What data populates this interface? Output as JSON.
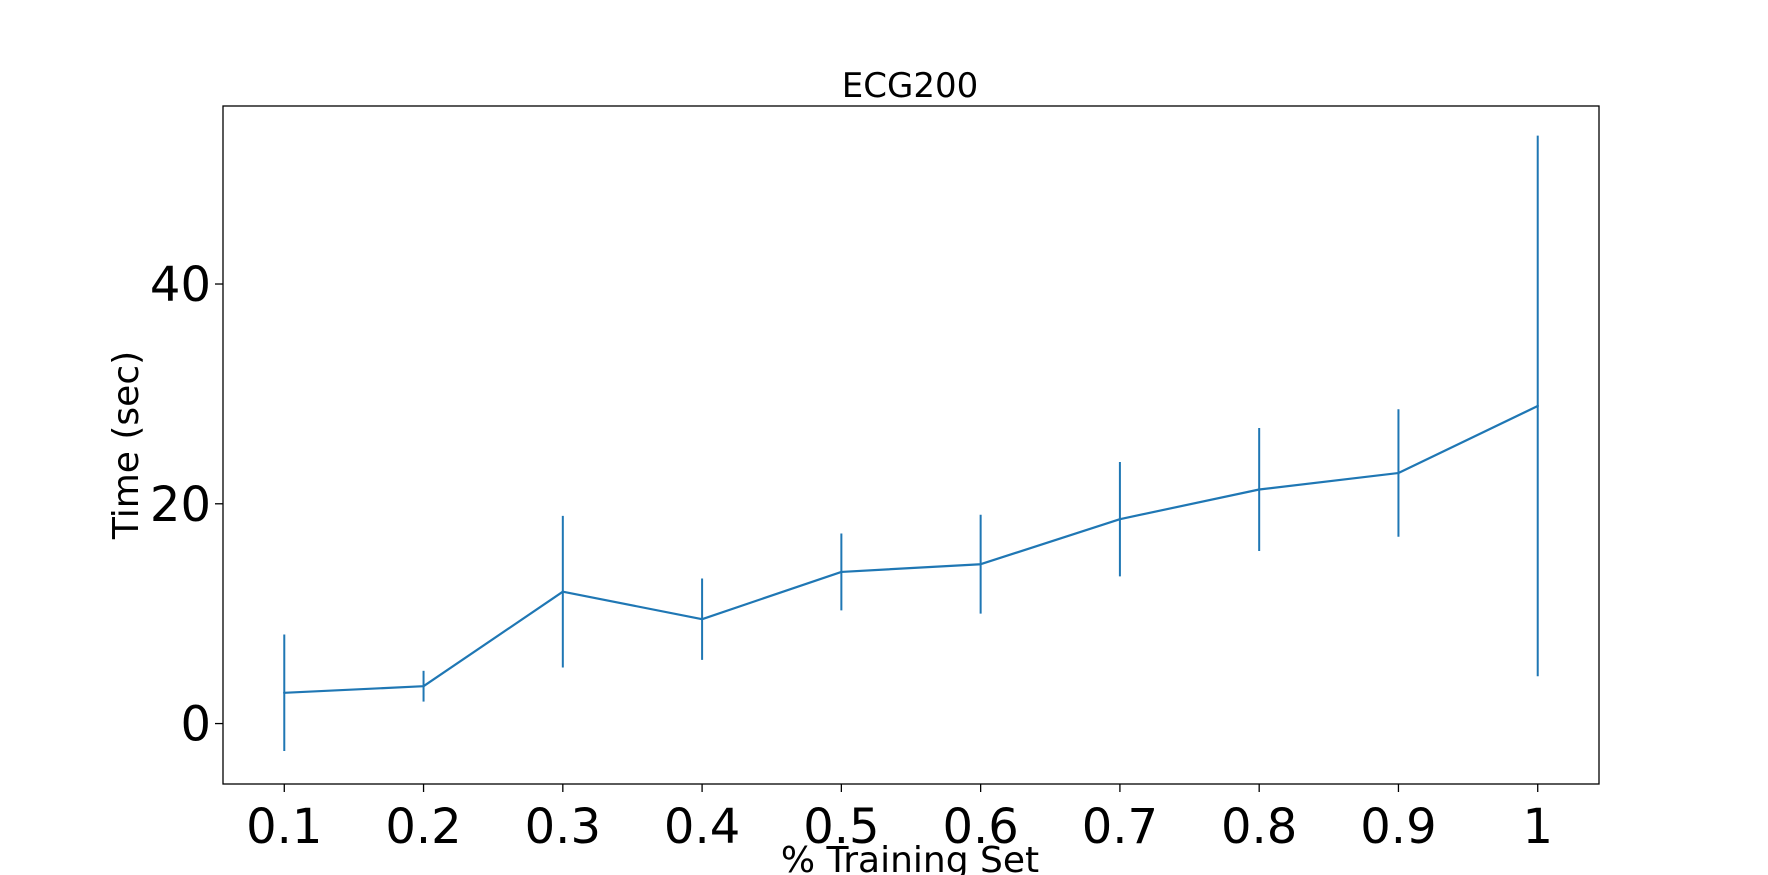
{
  "chart_data": {
    "type": "line",
    "title": "ECG200",
    "xlabel": "% Training Set",
    "ylabel": "Time (sec)",
    "x": [
      0.1,
      0.2,
      0.3,
      0.4,
      0.5,
      0.6,
      0.7,
      0.8,
      0.9,
      1
    ],
    "x_tick_labels": [
      "0.1",
      "0.2",
      "0.3",
      "0.4",
      "0.5",
      "0.6",
      "0.7",
      "0.8",
      "0.9",
      "1"
    ],
    "y_ticks": [
      0,
      20,
      40
    ],
    "y_tick_labels": [
      "0",
      "20",
      "40"
    ],
    "xlim": [
      0.056,
      1.044
    ],
    "ylim": [
      -5.5,
      56.2
    ],
    "series": [
      {
        "values": [
          2.8,
          3.4,
          12.0,
          9.5,
          13.8,
          14.5,
          18.6,
          21.3,
          22.8,
          28.9
        ],
        "error": [
          5.3,
          1.4,
          6.9,
          3.7,
          3.5,
          4.5,
          5.2,
          5.6,
          5.8,
          24.6
        ],
        "color": "#1f77b4"
      }
    ],
    "grid": false,
    "legend": "none"
  }
}
